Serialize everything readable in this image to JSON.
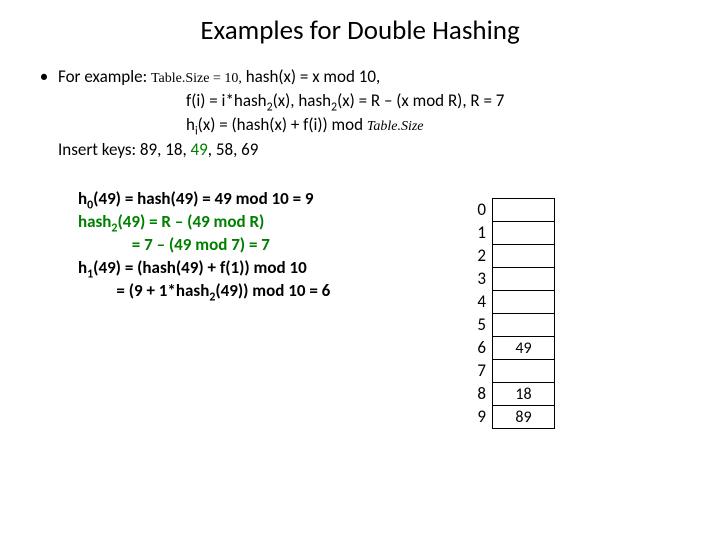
{
  "title": "Examples for Double Hashing",
  "bullet_glyph": "•",
  "example": {
    "lead": "For example: ",
    "tablesize_label": "Table.Size = 10,",
    "hash_def": "  hash(x) = x mod 10,",
    "f_def_a": "f(i) = i*hash",
    "f_def_b": "(x), hash",
    "f_def_c": "(x) = R – (x mod R), R = 7",
    "hi_a": "h",
    "hi_b": "(x) = (hash(x) + f(i)) mod ",
    "hi_c": "Table.Size",
    "insert": "Insert keys: 89, 18, ",
    "insert_green": "49",
    "insert_tail": ", 58, 69"
  },
  "calc": {
    "l1a": "h",
    "l1b": "(49) = hash(49) = 49 mod 10 = 9",
    "l2a": "hash",
    "l2b": "(49) = R – (49 mod R)",
    "l3": "              = 7 – (49 mod 7) = 7",
    "l4a": "h",
    "l4b": "(49) = (hash(49) + f(1)) mod 10",
    "l5a": "          = (9 + 1*hash",
    "l5b": "(49)) mod 10 = 6"
  },
  "table": {
    "indices": [
      "0",
      "1",
      "2",
      "3",
      "4",
      "5",
      "6",
      "7",
      "8",
      "9"
    ],
    "cells": [
      "",
      "",
      "",
      "",
      "",
      "",
      "49",
      "",
      "18",
      "89"
    ]
  },
  "colors": {
    "green": "#008000",
    "text": "#000000",
    "bg": "#ffffff",
    "border": "#000000"
  }
}
